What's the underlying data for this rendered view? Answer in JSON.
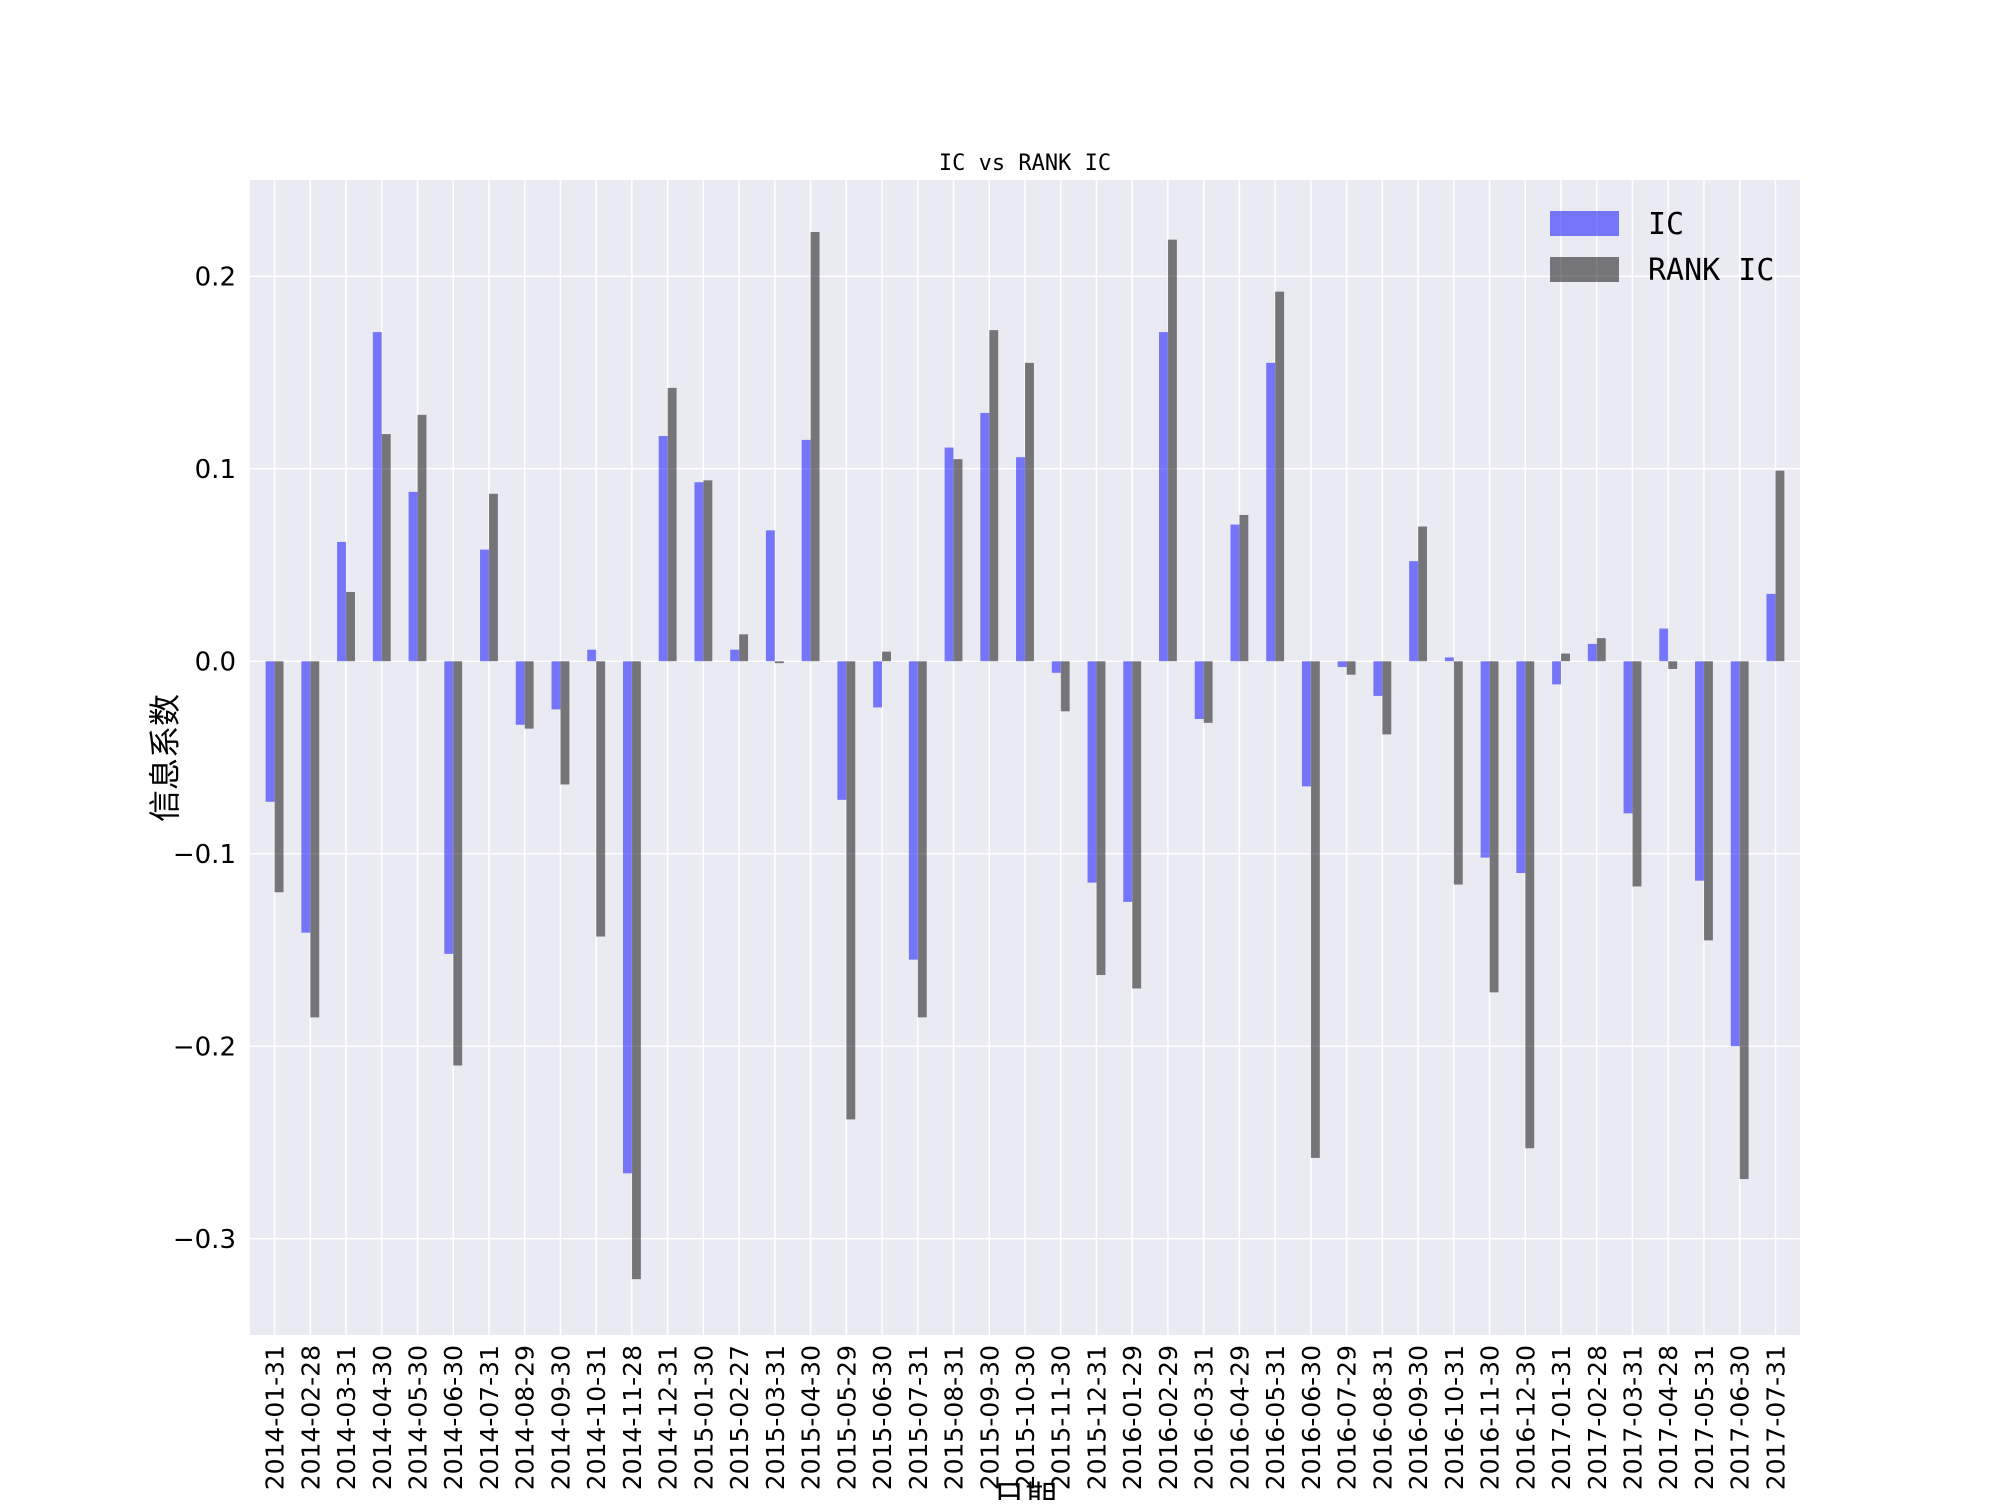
{
  "chart_data": {
    "type": "bar",
    "title": "IC vs RANK IC",
    "xlabel": "日期",
    "ylabel": "信息系数",
    "ylim": [
      -0.35,
      0.25
    ],
    "yticks": [
      0.2,
      0.1,
      0.0,
      -0.1,
      -0.2,
      -0.3
    ],
    "ytick_labels": [
      "0.2",
      "0.1",
      "0.0",
      "−0.1",
      "−0.2",
      "−0.3"
    ],
    "grid": true,
    "legend_position": "top-right",
    "categories": [
      "2014-01-31",
      "2014-02-28",
      "2014-03-31",
      "2014-04-30",
      "2014-05-30",
      "2014-06-30",
      "2014-07-31",
      "2014-08-29",
      "2014-09-30",
      "2014-10-31",
      "2014-11-28",
      "2014-12-31",
      "2015-01-30",
      "2015-02-27",
      "2015-03-31",
      "2015-04-30",
      "2015-05-29",
      "2015-06-30",
      "2015-07-31",
      "2015-08-31",
      "2015-09-30",
      "2015-10-30",
      "2015-11-30",
      "2015-12-31",
      "2016-01-29",
      "2016-02-29",
      "2016-03-31",
      "2016-04-29",
      "2016-05-31",
      "2016-06-30",
      "2016-07-29",
      "2016-08-31",
      "2016-09-30",
      "2016-10-31",
      "2016-11-30",
      "2016-12-30",
      "2017-01-31",
      "2017-02-28",
      "2017-03-31",
      "2017-04-28",
      "2017-05-31",
      "2017-06-30",
      "2017-07-31"
    ],
    "series": [
      {
        "name": "IC",
        "color": "#0000ff",
        "opacity": 0.5,
        "values": [
          -0.073,
          -0.141,
          0.062,
          0.171,
          0.088,
          -0.152,
          0.058,
          -0.033,
          -0.025,
          0.006,
          -0.266,
          0.117,
          0.093,
          0.006,
          0.068,
          0.115,
          -0.072,
          -0.024,
          -0.155,
          0.111,
          0.129,
          0.106,
          -0.006,
          -0.115,
          -0.125,
          0.171,
          -0.03,
          0.071,
          0.155,
          -0.065,
          -0.003,
          -0.018,
          0.052,
          0.002,
          -0.102,
          -0.11,
          -0.012,
          0.009,
          -0.079,
          0.017,
          -0.114,
          -0.2,
          0.035
        ]
      },
      {
        "name": "RANK IC",
        "color": "#000000",
        "opacity": 0.5,
        "values": [
          -0.12,
          -0.185,
          0.036,
          0.118,
          0.128,
          -0.21,
          0.087,
          -0.035,
          -0.064,
          -0.143,
          -0.321,
          0.142,
          0.094,
          0.014,
          -0.001,
          0.223,
          -0.238,
          0.005,
          -0.185,
          0.105,
          0.172,
          0.155,
          -0.026,
          -0.163,
          -0.17,
          0.219,
          -0.032,
          0.076,
          0.192,
          -0.258,
          -0.007,
          -0.038,
          0.07,
          -0.116,
          -0.172,
          -0.253,
          0.004,
          0.012,
          -0.117,
          -0.004,
          -0.145,
          -0.269,
          0.099
        ]
      }
    ]
  }
}
